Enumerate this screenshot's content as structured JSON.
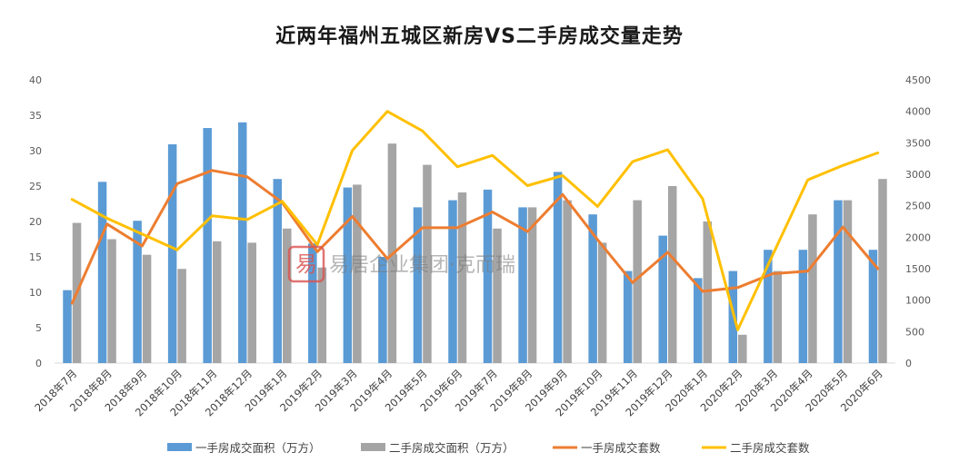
{
  "chart_data": {
    "type": "bar",
    "title": "近两年福州五城区新房VS二手房成交量走势",
    "categories": [
      "2018年7月",
      "2018年8月",
      "2018年9月",
      "2018年10月",
      "2018年11月",
      "2018年12月",
      "2019年1月",
      "2019年2月",
      "2019年3月",
      "2019年4月",
      "2019年5月",
      "2019年6月",
      "2019年7月",
      "2019年8月",
      "2019年9月",
      "2019年10月",
      "2019年11月",
      "2019年12月",
      "2020年1月",
      "2020年2月",
      "2020年3月",
      "2020年4月",
      "2020年5月",
      "2020年6月"
    ],
    "left_axis": {
      "ylim": [
        0,
        40
      ],
      "ticks": [
        "0",
        "5",
        "10",
        "15",
        "20",
        "25",
        "30",
        "35",
        "40"
      ]
    },
    "right_axis": {
      "ylim": [
        0,
        4500
      ],
      "ticks": [
        "0",
        "500",
        "1000",
        "1500",
        "2000",
        "2500",
        "3000",
        "3500",
        "4000",
        "4500"
      ]
    },
    "grid": false,
    "legend_position": "bottom",
    "series": [
      {
        "name": "一手房成交面积（万方）",
        "type": "bar",
        "axis": "left",
        "color": "#5B9BD5",
        "values": [
          10.3,
          25.6,
          20.1,
          30.9,
          33.2,
          34.0,
          26.0,
          16.9,
          24.8,
          15.0,
          22.0,
          23.0,
          24.5,
          22.0,
          27.0,
          21.0,
          13.0,
          18.0,
          12.0,
          13.0,
          16.0,
          16.0,
          23.0,
          16.0
        ]
      },
      {
        "name": "二手房成交面积（万方）",
        "type": "bar",
        "axis": "left",
        "color": "#A5A5A5",
        "values": [
          19.8,
          17.5,
          15.3,
          13.3,
          17.2,
          17.0,
          19.0,
          13.5,
          25.2,
          31.0,
          28.0,
          24.1,
          19.0,
          22.0,
          23.0,
          17.0,
          23.0,
          25.0,
          20.0,
          4.0,
          13.0,
          21.0,
          23.0,
          26.0
        ]
      },
      {
        "name": "一手房成交套数",
        "type": "line",
        "axis": "right",
        "color": "#ED7D31",
        "values": [
          950,
          2210,
          1860,
          2850,
          3060,
          2960,
          2550,
          1770,
          2330,
          1660,
          2150,
          2150,
          2400,
          2090,
          2680,
          1960,
          1280,
          1760,
          1140,
          1200,
          1420,
          1460,
          2160,
          1500
        ]
      },
      {
        "name": "二手房成交套数",
        "type": "line",
        "axis": "right",
        "color": "#FFC000",
        "values": [
          2600,
          2300,
          2050,
          1800,
          2340,
          2280,
          2570,
          1880,
          3380,
          4000,
          3690,
          3120,
          3300,
          2820,
          2980,
          2490,
          3200,
          3390,
          2610,
          530,
          1720,
          2910,
          3140,
          3340
        ]
      }
    ]
  },
  "watermark": {
    "text": "易居企业集团·克而瑞",
    "seal_char": "易"
  }
}
